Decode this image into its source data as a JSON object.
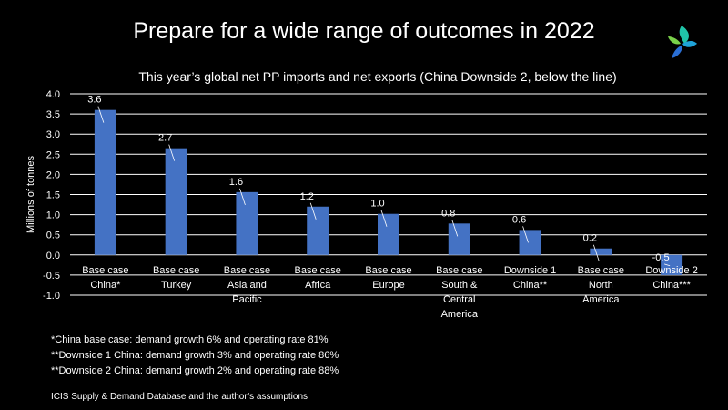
{
  "slide": {
    "title": "Prepare for a wide range of outcomes in 2022"
  },
  "colors": {
    "background": "#000000",
    "bar": "#4472C4",
    "text": "#ffffff",
    "grid": "#ffffff"
  },
  "logo": {
    "icon": "icis-swirl-logo-icon"
  },
  "chart_data": {
    "type": "bar",
    "title": "This year’s global net PP imports and net exports (China Downside 2, below the line)",
    "ylabel": "Millions of tonnes",
    "xlabel": "",
    "ylim": [
      -1.0,
      4.0
    ],
    "yticks": [
      "4.0",
      "3.5",
      "3.0",
      "2.5",
      "2.0",
      "1.5",
      "1.0",
      "0.5",
      "0.0",
      "-0.5",
      "-1.0"
    ],
    "grid": true,
    "categories": [
      [
        "Base case",
        "China*"
      ],
      [
        "Base case",
        "Turkey"
      ],
      [
        "Base case",
        "Asia and",
        "Pacific"
      ],
      [
        "Base case",
        "Africa"
      ],
      [
        "Base case",
        "Europe"
      ],
      [
        "Base case",
        "South &",
        "Central",
        "America"
      ],
      [
        "Downside 1",
        "China**"
      ],
      [
        "Base case",
        "North",
        "America"
      ],
      [
        "Downside 2",
        "China***"
      ]
    ],
    "values": [
      3.6,
      2.65,
      1.56,
      1.2,
      1.02,
      0.78,
      0.62,
      0.16,
      -0.5
    ],
    "data_labels": [
      "3.6",
      "2.7",
      "1.6",
      "1.2",
      "1.0",
      "0.8",
      "0.6",
      "0.2",
      "-0.5"
    ]
  },
  "footnotes": [
    "*China base case: demand growth 6% and operating rate 81%",
    "**Downside 1 China: demand growth 3% and operating rate 86%",
    "**Downside 2 China: demand growth 2% and operating rate 88%"
  ],
  "source": "ICIS Supply  & Demand Database and the author’s assumptions"
}
